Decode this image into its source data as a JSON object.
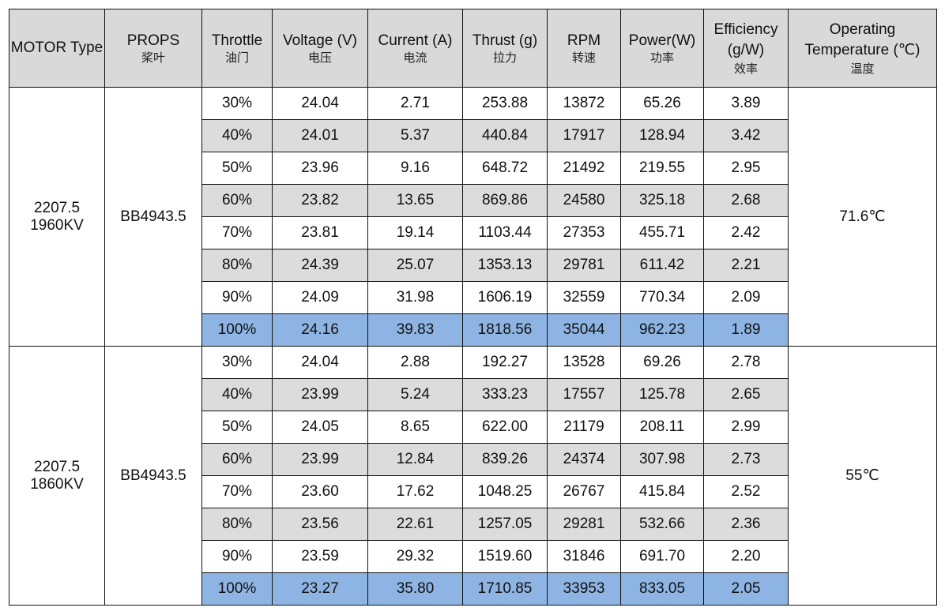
{
  "headers": [
    {
      "en": "MOTOR Type",
      "cn": ""
    },
    {
      "en": "PROPS",
      "cn": "桨叶"
    },
    {
      "en": "Throttle",
      "cn": "油门"
    },
    {
      "en": "Voltage (V)",
      "cn": "电压"
    },
    {
      "en": "Current (A)",
      "cn": "电流"
    },
    {
      "en": "Thrust (g)",
      "cn": "拉力"
    },
    {
      "en": "RPM",
      "cn": "转速"
    },
    {
      "en": "Power(W)",
      "cn": "功率"
    },
    {
      "en": "Efficiency (g/W)",
      "cn": "效率"
    },
    {
      "en": "Operating Temperature (℃)",
      "cn": "温度"
    }
  ],
  "groups": [
    {
      "motor_line1": "2207.5",
      "motor_line2": "1960KV",
      "prop": "BB4943.5",
      "temperature": "71.6℃",
      "rows": [
        [
          "30%",
          "24.04",
          "2.71",
          "253.88",
          "13872",
          "65.26",
          "3.89"
        ],
        [
          "40%",
          "24.01",
          "5.37",
          "440.84",
          "17917",
          "128.94",
          "3.42"
        ],
        [
          "50%",
          "23.96",
          "9.16",
          "648.72",
          "21492",
          "219.55",
          "2.95"
        ],
        [
          "60%",
          "23.82",
          "13.65",
          "869.86",
          "24580",
          "325.18",
          "2.68"
        ],
        [
          "70%",
          "23.81",
          "19.14",
          "1103.44",
          "27353",
          "455.71",
          "2.42"
        ],
        [
          "80%",
          "24.39",
          "25.07",
          "1353.13",
          "29781",
          "611.42",
          "2.21"
        ],
        [
          "90%",
          "24.09",
          "31.98",
          "1606.19",
          "32559",
          "770.34",
          "2.09"
        ],
        [
          "100%",
          "24.16",
          "39.83",
          "1818.56",
          "35044",
          "962.23",
          "1.89"
        ]
      ]
    },
    {
      "motor_line1": "2207.5",
      "motor_line2": "1860KV",
      "prop": "BB4943.5",
      "temperature": "55℃",
      "rows": [
        [
          "30%",
          "24.04",
          "2.88",
          "192.27",
          "13528",
          "69.26",
          "2.78"
        ],
        [
          "40%",
          "23.99",
          "5.24",
          "333.23",
          "17557",
          "125.78",
          "2.65"
        ],
        [
          "50%",
          "24.05",
          "8.65",
          "622.00",
          "21179",
          "208.11",
          "2.99"
        ],
        [
          "60%",
          "23.99",
          "12.84",
          "839.26",
          "24374",
          "307.98",
          "2.73"
        ],
        [
          "70%",
          "23.60",
          "17.62",
          "1048.25",
          "26767",
          "415.84",
          "2.52"
        ],
        [
          "80%",
          "23.56",
          "22.61",
          "1257.05",
          "29281",
          "532.66",
          "2.36"
        ],
        [
          "90%",
          "23.59",
          "29.32",
          "1519.60",
          "31846",
          "691.70",
          "2.20"
        ],
        [
          "100%",
          "23.27",
          "35.80",
          "1710.85",
          "33953",
          "833.05",
          "2.05"
        ]
      ]
    }
  ],
  "colors": {
    "header_bg": "#d9d9d9",
    "shaded_row_bg": "#dcdcdc",
    "max_throttle_row_bg": "#8eb4e3",
    "border": "#111111"
  }
}
